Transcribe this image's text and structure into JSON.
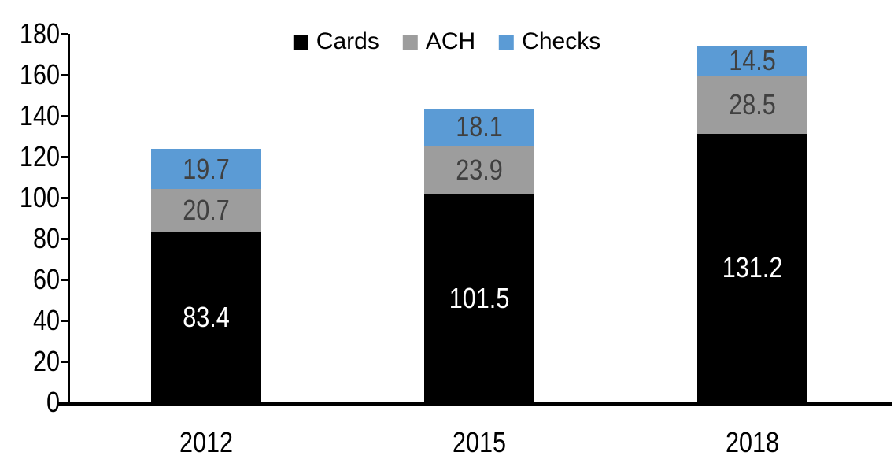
{
  "chart_data": {
    "type": "bar",
    "stacked": true,
    "title": "",
    "xlabel": "",
    "ylabel": "",
    "categories": [
      "2012",
      "2015",
      "2018"
    ],
    "series": [
      {
        "name": "Cards",
        "color": "#000000",
        "label_color": "#ffffff",
        "values": [
          83.4,
          101.5,
          131.2
        ]
      },
      {
        "name": "ACH",
        "color": "#9d9d9d",
        "label_color": "#404040",
        "values": [
          20.7,
          23.9,
          28.5
        ]
      },
      {
        "name": "Checks",
        "color": "#5b9bd5",
        "label_color": "#404040",
        "values": [
          19.7,
          18.1,
          14.5
        ]
      }
    ],
    "ylim": [
      0,
      180
    ],
    "y_ticks": [
      0,
      20,
      40,
      60,
      80,
      100,
      120,
      140,
      160,
      180
    ],
    "grid": false,
    "legend_position": "top",
    "axis_color": "#000000"
  }
}
